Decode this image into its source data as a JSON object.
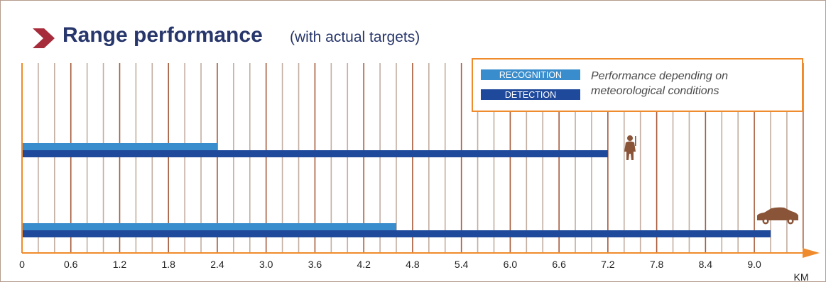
{
  "header": {
    "title": "Range performance",
    "subtitle": "(with actual targets)"
  },
  "colors": {
    "title": "#27366b",
    "chevron": "#a62b3b",
    "recognition": "#3a8dcc",
    "detection": "#1f4a9c",
    "axis": "#ef8b2c",
    "grid_major": "#a65b3c",
    "grid_minor": "#c2ada1",
    "icon": "#8a5438",
    "legend_text": "#4a4a4a",
    "legend_border": "#ef8b2c"
  },
  "legend": {
    "items": [
      {
        "key": "recognition",
        "label": "RECOGNITION"
      },
      {
        "key": "detection",
        "label": "DETECTION"
      }
    ],
    "note_line1": "Performance depending on",
    "note_line2": "meteorological conditions",
    "placement": "top-right"
  },
  "chart_data": {
    "type": "bar",
    "orientation": "horizontal",
    "xlabel": "KM",
    "xlim": [
      0,
      9.6
    ],
    "x_ticks": [
      "0",
      "0.6",
      "1.2",
      "1.8",
      "2.4",
      "3.0",
      "3.6",
      "4.2",
      "4.8",
      "5.4",
      "6.0",
      "6.6",
      "7.2",
      "7.8",
      "8.4",
      "9.0"
    ],
    "gridline_step": 0.2,
    "grid": true,
    "categories": [
      "person-icon",
      "car-icon"
    ],
    "series": [
      {
        "name": "RECOGNITION",
        "values": [
          2.4,
          4.6
        ]
      },
      {
        "name": "DETECTION",
        "values": [
          7.2,
          9.2
        ]
      }
    ]
  }
}
